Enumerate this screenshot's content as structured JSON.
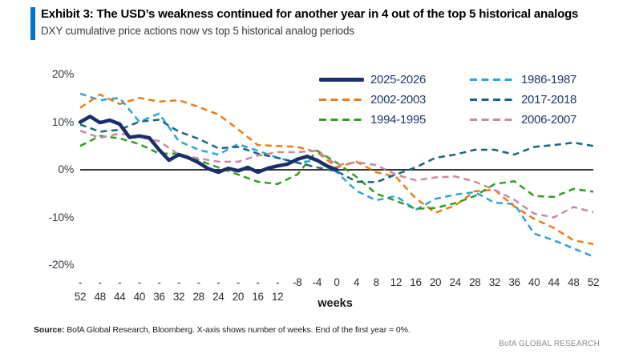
{
  "exhibit": {
    "title": "Exhibit 3: The USD’s weakness continued for another year in 4 out of the top 5 historical analogs",
    "subtitle": "DXY cumulative price actions now vs top 5 historical analog periods",
    "accent_color": "#0073cf"
  },
  "footer": {
    "source_label": "Source:",
    "source_text": " BofA Global Research, Bloomberg. X-axis shows number of weeks. End of the first year = 0%.",
    "brand": "BofA GLOBAL RESEARCH"
  },
  "chart_data": {
    "type": "line",
    "xlabel": "weeks",
    "ylim": [
      -22,
      22
    ],
    "xlim": [
      -52,
      52
    ],
    "grid": false,
    "zero_line": true,
    "legend_position": "top-right-inside",
    "y_ticks": [
      {
        "value": 20,
        "label": "20%"
      },
      {
        "value": 10,
        "label": "10%"
      },
      {
        "value": 0,
        "label": "0%"
      },
      {
        "value": -10,
        "label": "-10%"
      },
      {
        "value": -20,
        "label": "-20%"
      }
    ],
    "x_ticks": [
      {
        "week": -52,
        "line1": "-",
        "line2": "52"
      },
      {
        "week": -48,
        "line1": "-",
        "line2": "48"
      },
      {
        "week": -44,
        "line1": "-",
        "line2": "44"
      },
      {
        "week": -40,
        "line1": "-",
        "line2": "40"
      },
      {
        "week": -36,
        "line1": "-",
        "line2": "36"
      },
      {
        "week": -32,
        "line1": "-",
        "line2": "32"
      },
      {
        "week": -28,
        "line1": "-",
        "line2": "28"
      },
      {
        "week": -24,
        "line1": "-",
        "line2": "24"
      },
      {
        "week": -20,
        "line1": "-",
        "line2": "20"
      },
      {
        "week": -16,
        "line1": "-",
        "line2": "16"
      },
      {
        "week": -12,
        "line1": "-",
        "line2": "12"
      },
      {
        "week": -8,
        "line1": "-8"
      },
      {
        "week": -4,
        "line1": "-4"
      },
      {
        "week": 0,
        "line1": "0"
      },
      {
        "week": 4,
        "line1": "4"
      },
      {
        "week": 8,
        "line1": "8"
      },
      {
        "week": 12,
        "line1": "12"
      },
      {
        "week": 16,
        "line1": "16"
      },
      {
        "week": 20,
        "line1": "20"
      },
      {
        "week": 24,
        "line1": "24"
      },
      {
        "week": 28,
        "line1": "28"
      },
      {
        "week": 32,
        "line1": "32"
      },
      {
        "week": 36,
        "line1": "36"
      },
      {
        "week": 40,
        "line1": "40"
      },
      {
        "week": 44,
        "line1": "44"
      },
      {
        "week": 48,
        "line1": "48"
      },
      {
        "week": 52,
        "line1": "52"
      }
    ],
    "legend_columns": [
      [
        "2025-2026",
        "2002-2003",
        "1994-1995"
      ],
      [
        "1986-1987",
        "2017-2018",
        "2006-2007"
      ]
    ],
    "series": [
      {
        "name": "1986-1987",
        "color": "#2aa4de",
        "style": "dashed",
        "width": 2.5,
        "x": [
          -52,
          -48,
          -44,
          -40,
          -36,
          -32,
          -28,
          -24,
          -20,
          -16,
          -12,
          -8,
          -4,
          0,
          4,
          8,
          12,
          16,
          20,
          24,
          28,
          32,
          36,
          40,
          44,
          48,
          52
        ],
        "values": [
          16.0,
          14.6,
          15.1,
          10.1,
          11.8,
          6.0,
          4.2,
          3.2,
          5.4,
          4.0,
          2.5,
          1.5,
          2.0,
          -0.5,
          -4.4,
          -6.4,
          -5.5,
          -8.4,
          -6.1,
          -5.2,
          -4.7,
          -6.9,
          -7.2,
          -13.4,
          -14.8,
          -16.5,
          -18.2
        ]
      },
      {
        "name": "2002-2003",
        "color": "#ee7b0e",
        "style": "dashed",
        "width": 2.5,
        "x": [
          -52,
          -48,
          -44,
          -40,
          -36,
          -32,
          -28,
          -24,
          -20,
          -16,
          -12,
          -8,
          -4,
          0,
          4,
          8,
          12,
          16,
          20,
          24,
          28,
          32,
          36,
          40,
          44,
          48,
          52
        ],
        "values": [
          13.0,
          15.8,
          13.8,
          15.1,
          14.3,
          14.6,
          13.2,
          11.6,
          8.5,
          5.2,
          5.0,
          4.8,
          3.7,
          0.5,
          1.7,
          -0.5,
          -1.5,
          -6.0,
          -9.0,
          -7.5,
          -4.5,
          -4.2,
          -7.7,
          -10.3,
          -12.2,
          -14.8,
          -15.6
        ]
      },
      {
        "name": "1994-1995",
        "color": "#2f9e1e",
        "style": "dashed",
        "width": 2.5,
        "x": [
          -52,
          -48,
          -44,
          -40,
          -36,
          -32,
          -28,
          -24,
          -20,
          -16,
          -12,
          -8,
          -4,
          0,
          4,
          8,
          12,
          16,
          20,
          24,
          28,
          32,
          36,
          40,
          44,
          48,
          52
        ],
        "values": [
          5.0,
          7.1,
          6.6,
          5.4,
          3.4,
          3.4,
          2.0,
          0.5,
          -1.0,
          -2.5,
          -3.0,
          -1.0,
          4.0,
          1.5,
          -1.5,
          -5.0,
          -6.5,
          -8.2,
          -8.0,
          -7.0,
          -5.5,
          -3.0,
          -2.4,
          -5.5,
          -5.7,
          -4.0,
          -4.6
        ]
      },
      {
        "name": "2017-2018",
        "color": "#17657f",
        "style": "dashed",
        "width": 2.5,
        "x": [
          -52,
          -48,
          -44,
          -40,
          -36,
          -32,
          -28,
          -24,
          -20,
          -16,
          -12,
          -8,
          -4,
          0,
          4,
          8,
          12,
          16,
          20,
          24,
          28,
          32,
          36,
          40,
          44,
          48,
          52
        ],
        "values": [
          9.5,
          8.0,
          8.4,
          10.1,
          10.5,
          8.0,
          6.5,
          4.5,
          4.8,
          3.4,
          2.5,
          1.5,
          0.5,
          -0.3,
          -2.5,
          -2.6,
          -1.0,
          0.5,
          2.5,
          3.2,
          4.2,
          4.2,
          3.2,
          4.8,
          5.2,
          5.7,
          5.0
        ]
      },
      {
        "name": "2006-2007",
        "color": "#c48ba0",
        "style": "dashed",
        "width": 2.5,
        "x": [
          -52,
          -48,
          -44,
          -40,
          -36,
          -32,
          -28,
          -24,
          -20,
          -16,
          -12,
          -8,
          -4,
          0,
          4,
          8,
          12,
          16,
          20,
          24,
          28,
          32,
          36,
          40,
          44,
          48,
          52
        ],
        "values": [
          8.2,
          6.7,
          7.6,
          6.9,
          6.0,
          3.2,
          2.4,
          1.7,
          1.7,
          3.0,
          3.7,
          3.7,
          4.0,
          1.0,
          1.6,
          1.0,
          -1.0,
          -2.2,
          -1.6,
          -1.4,
          -2.5,
          -4.2,
          -6.3,
          -9.2,
          -10.0,
          -7.8,
          -8.9
        ]
      },
      {
        "name": "2025-2026",
        "color": "#1a2e6b",
        "style": "solid",
        "width": 4.5,
        "x": [
          -52,
          -50,
          -48,
          -46,
          -44,
          -42,
          -40,
          -38,
          -36,
          -34,
          -32,
          -30,
          -28,
          -26,
          -24,
          -22,
          -20,
          -18,
          -16,
          -14,
          -12,
          -10,
          -8,
          -6,
          -4,
          -2,
          0
        ],
        "values": [
          10.0,
          11.2,
          9.9,
          10.4,
          9.6,
          6.8,
          7.1,
          6.7,
          4.2,
          2.0,
          3.2,
          2.5,
          1.5,
          0.2,
          -0.5,
          0.3,
          -0.2,
          0.5,
          -0.5,
          0.3,
          0.8,
          1.2,
          2.2,
          2.8,
          2.0,
          0.8,
          0.0
        ]
      }
    ]
  }
}
